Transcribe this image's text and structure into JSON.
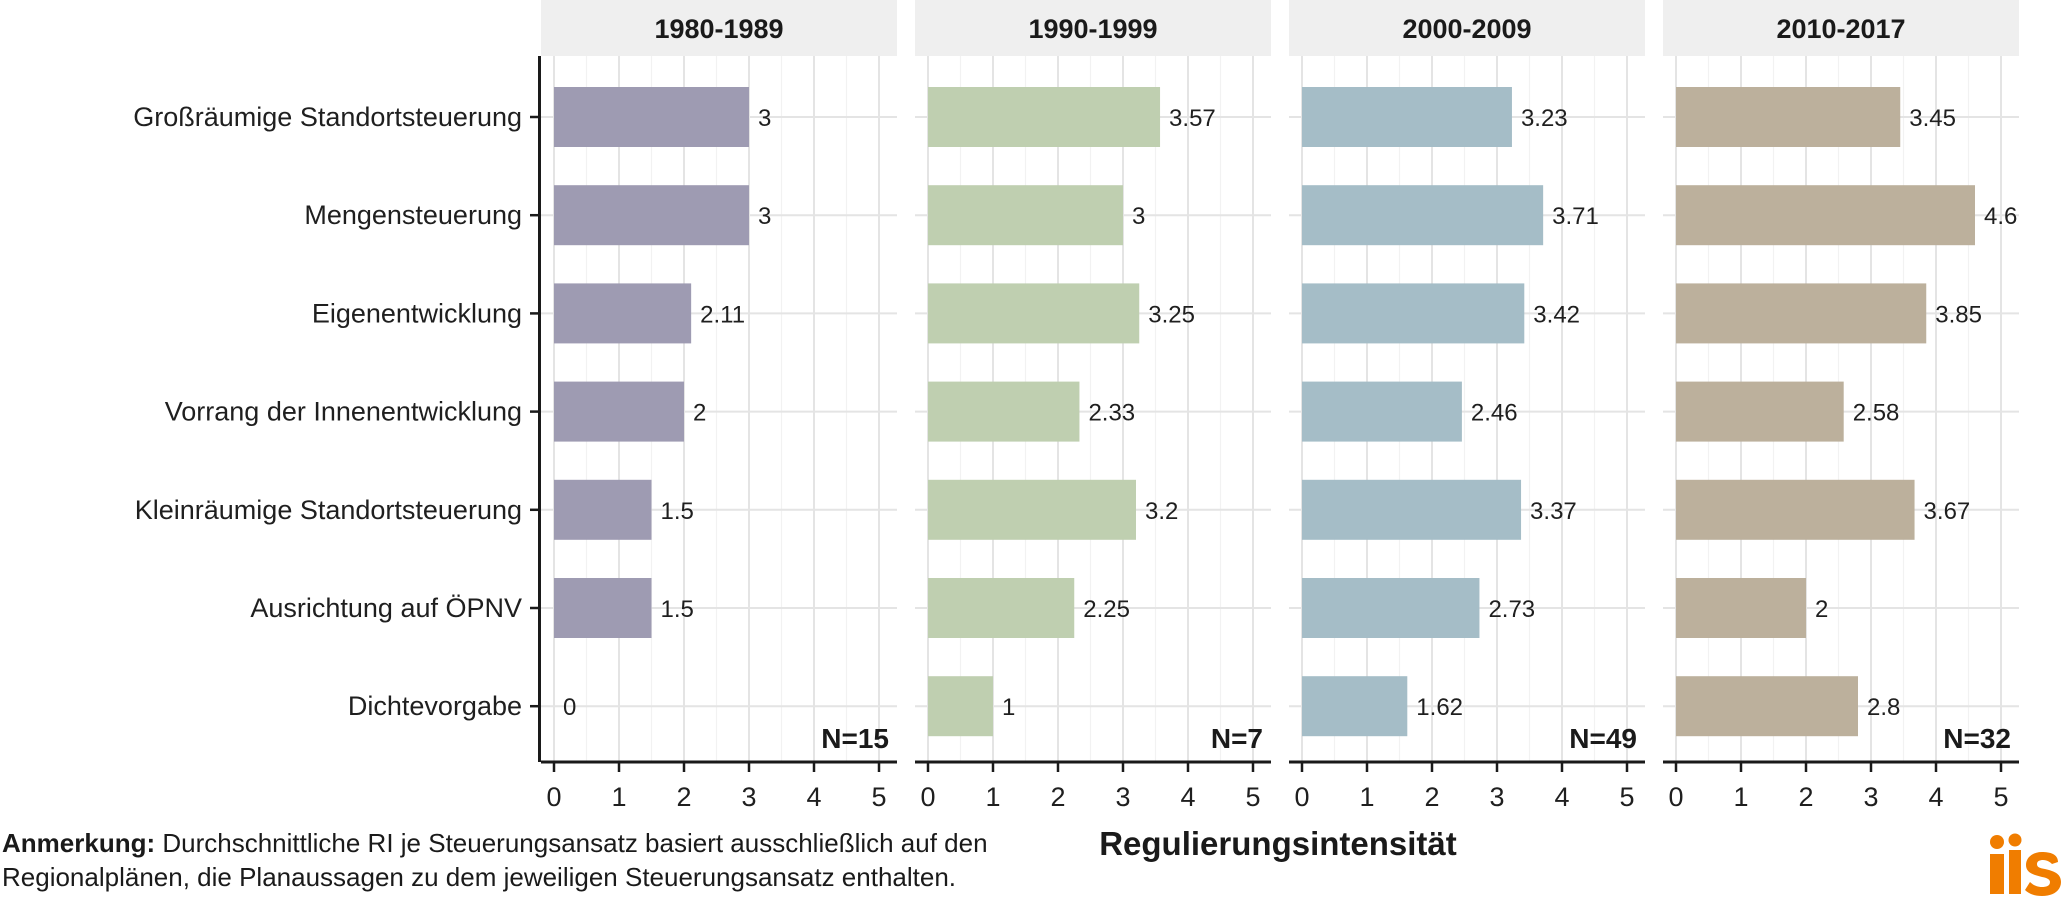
{
  "chart_data": {
    "type": "bar",
    "orientation": "horizontal",
    "facets": [
      "1980-1989",
      "1990-1999",
      "2000-2009",
      "2010-2017"
    ],
    "categories": [
      "Großräumige Standortsteuerung",
      "Mengensteuerung",
      "Eigenentwicklung",
      "Vorrang der Innenentwicklung",
      "Kleinräumige Standortsteuerung",
      "Ausrichtung auf ÖPNV",
      "Dichtevorgabe"
    ],
    "series": [
      {
        "facet": "1980-1989",
        "color": "#9e9bb2",
        "values": [
          3,
          3,
          2.11,
          2,
          1.5,
          1.5,
          0
        ],
        "labels": [
          "3",
          "3",
          "2.11",
          "2",
          "1.5",
          "1.5",
          "0"
        ],
        "n": "N=15"
      },
      {
        "facet": "1990-1999",
        "color": "#bfcfb0",
        "values": [
          3.57,
          3,
          3.25,
          2.33,
          3.2,
          2.25,
          1
        ],
        "labels": [
          "3.57",
          "3",
          "3.25",
          "2.33",
          "3.2",
          "2.25",
          "1"
        ],
        "n": "N=7"
      },
      {
        "facet": "2000-2009",
        "color": "#a5bdc7",
        "values": [
          3.23,
          3.71,
          3.42,
          2.46,
          3.37,
          2.73,
          1.62
        ],
        "labels": [
          "3.23",
          "3.71",
          "3.42",
          "2.46",
          "3.37",
          "2.73",
          "1.62"
        ],
        "n": "N=49"
      },
      {
        "facet": "2010-2017",
        "color": "#bcb09c",
        "values": [
          3.45,
          4.6,
          3.85,
          2.58,
          3.67,
          2,
          2.8
        ],
        "labels": [
          "3.45",
          "4.6",
          "3.85",
          "2.58",
          "3.67",
          "2",
          "2.8"
        ],
        "n": "N=32"
      }
    ],
    "xlim": [
      0,
      5
    ],
    "xticks": [
      "0",
      "1",
      "2",
      "3",
      "4",
      "5"
    ],
    "xlabel": "Regulierungsintensität",
    "grid": true
  },
  "note": {
    "label": "Anmerkung:",
    "line1": " Durchschnittliche RI je Steuerungsansatz basiert ausschließlich auf den",
    "line2": "Regionalplänen, die Planaussagen zu dem jeweiligen Steuerungsansatz enthalten."
  },
  "logo": {
    "text": "ils",
    "color": "#f07d00"
  }
}
